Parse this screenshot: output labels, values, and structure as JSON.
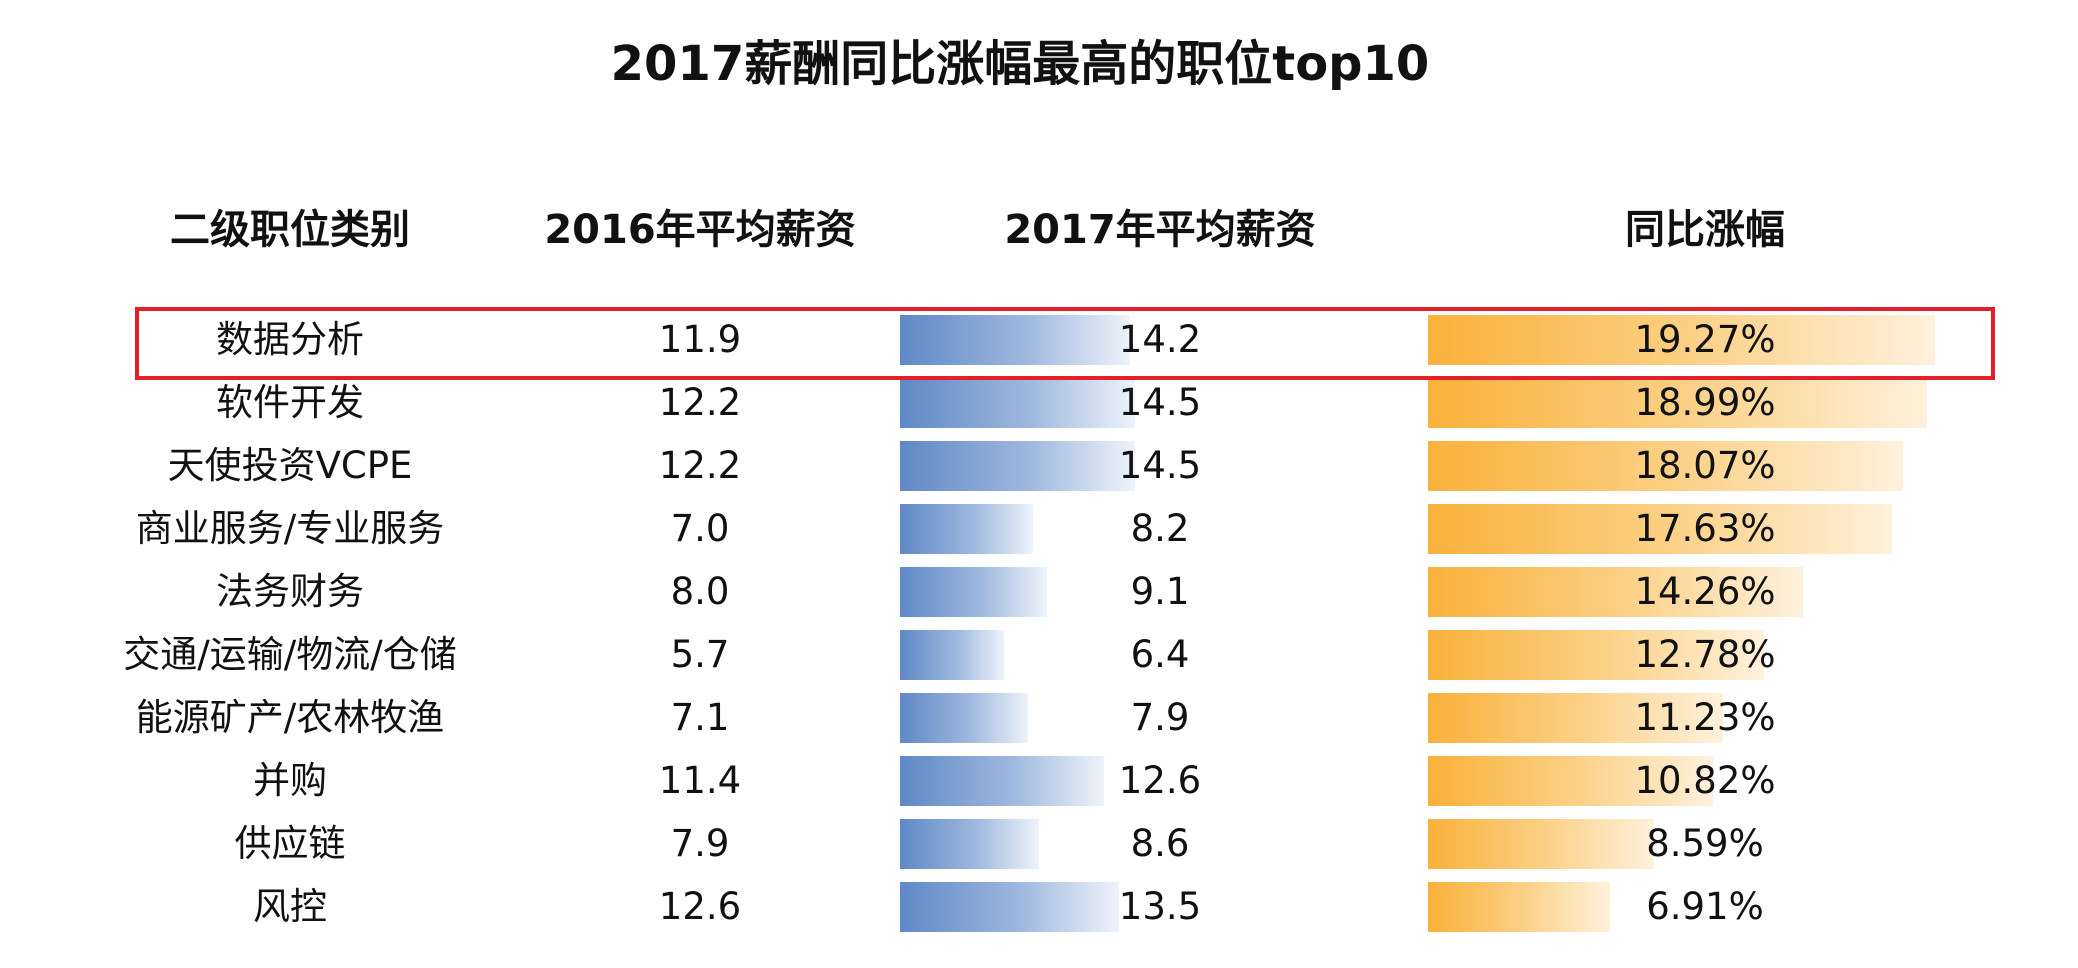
{
  "chart_data": {
    "type": "table",
    "title": "2017薪酬同比涨幅最高的职位top10",
    "columns": [
      "二级职位类别",
      "2016年平均薪资",
      "2017年平均薪资",
      "同比涨幅"
    ],
    "rows": [
      {
        "category": "数据分析",
        "avg_2016": "11.9",
        "avg_2017": "14.2",
        "growth": "19.27%",
        "avg_2017_value": 14.2,
        "growth_value": 19.27
      },
      {
        "category": "软件开发",
        "avg_2016": "12.2",
        "avg_2017": "14.5",
        "growth": "18.99%",
        "avg_2017_value": 14.5,
        "growth_value": 18.99
      },
      {
        "category": "天使投资VCPE",
        "avg_2016": "12.2",
        "avg_2017": "14.5",
        "growth": "18.07%",
        "avg_2017_value": 14.5,
        "growth_value": 18.07
      },
      {
        "category": "商业服务/专业服务",
        "avg_2016": "7.0",
        "avg_2017": "8.2",
        "growth": "17.63%",
        "avg_2017_value": 8.2,
        "growth_value": 17.63
      },
      {
        "category": "法务财务",
        "avg_2016": "8.0",
        "avg_2017": "9.1",
        "growth": "14.26%",
        "avg_2017_value": 9.1,
        "growth_value": 14.26
      },
      {
        "category": "交通/运输/物流/仓储",
        "avg_2016": "5.7",
        "avg_2017": "6.4",
        "growth": "12.78%",
        "avg_2017_value": 6.4,
        "growth_value": 12.78
      },
      {
        "category": "能源矿产/农林牧渔",
        "avg_2016": "7.1",
        "avg_2017": "7.9",
        "growth": "11.23%",
        "avg_2017_value": 7.9,
        "growth_value": 11.23
      },
      {
        "category": "并购",
        "avg_2016": "11.4",
        "avg_2017": "12.6",
        "growth": "10.82%",
        "avg_2017_value": 12.6,
        "growth_value": 10.82
      },
      {
        "category": "供应链",
        "avg_2016": "7.9",
        "avg_2017": "8.6",
        "growth": "8.59%",
        "avg_2017_value": 8.6,
        "growth_value": 8.59
      },
      {
        "category": "风控",
        "avg_2016": "12.6",
        "avg_2017": "13.5",
        "growth": "6.91%",
        "avg_2017_value": 13.5,
        "growth_value": 6.91
      }
    ],
    "highlighted_row": 0,
    "colors": {
      "salary_bar": "#5f88c6",
      "growth_bar": "#f9b13a",
      "highlight_border": "#e51f2a"
    }
  }
}
